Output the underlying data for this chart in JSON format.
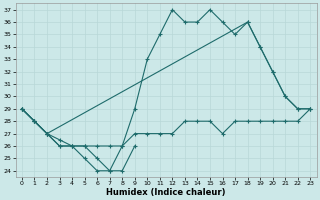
{
  "xlabel": "Humidex (Indice chaleur)",
  "background_color": "#cce8e8",
  "line_color": "#1e6b6b",
  "grid_color": "#b8d8d8",
  "xlim": [
    -0.5,
    23.5
  ],
  "ylim": [
    23.5,
    37.5
  ],
  "xticks": [
    0,
    1,
    2,
    3,
    4,
    5,
    6,
    7,
    8,
    9,
    10,
    11,
    12,
    13,
    14,
    15,
    16,
    17,
    18,
    19,
    20,
    21,
    22,
    23
  ],
  "yticks": [
    24,
    25,
    26,
    27,
    28,
    29,
    30,
    31,
    32,
    33,
    34,
    35,
    36,
    37
  ],
  "line1_x": [
    0,
    1,
    2,
    3,
    4,
    5,
    6,
    7,
    8,
    9,
    10,
    11,
    12,
    13,
    14,
    15,
    16,
    17,
    18,
    19,
    20,
    21,
    22,
    23
  ],
  "line1_y": [
    29,
    28,
    27,
    26,
    26,
    25,
    24,
    24,
    26,
    29,
    33,
    35,
    37,
    36,
    36,
    37,
    36,
    35,
    36,
    34,
    32,
    30,
    29,
    29
  ],
  "line2_x": [
    0,
    1,
    2,
    18,
    19,
    20,
    21,
    22,
    23
  ],
  "line2_y": [
    29,
    28,
    27,
    36,
    34,
    32,
    30,
    29,
    29
  ],
  "line3_x": [
    0,
    1,
    2,
    3,
    4,
    5,
    6,
    7,
    8,
    9,
    10,
    11,
    12,
    13,
    14,
    15,
    16,
    17,
    18,
    19,
    20,
    21,
    22,
    23
  ],
  "line3_y": [
    29,
    28,
    27,
    26.5,
    26,
    26,
    26,
    26,
    26,
    27,
    27,
    27,
    27,
    28,
    28,
    28,
    27,
    28,
    28,
    28,
    28,
    28,
    28,
    29
  ],
  "line4_x": [
    0,
    1,
    2,
    3,
    4,
    5,
    6,
    7,
    8,
    9
  ],
  "line4_y": [
    29,
    28,
    27,
    26,
    26,
    26,
    25,
    24,
    24,
    26
  ]
}
